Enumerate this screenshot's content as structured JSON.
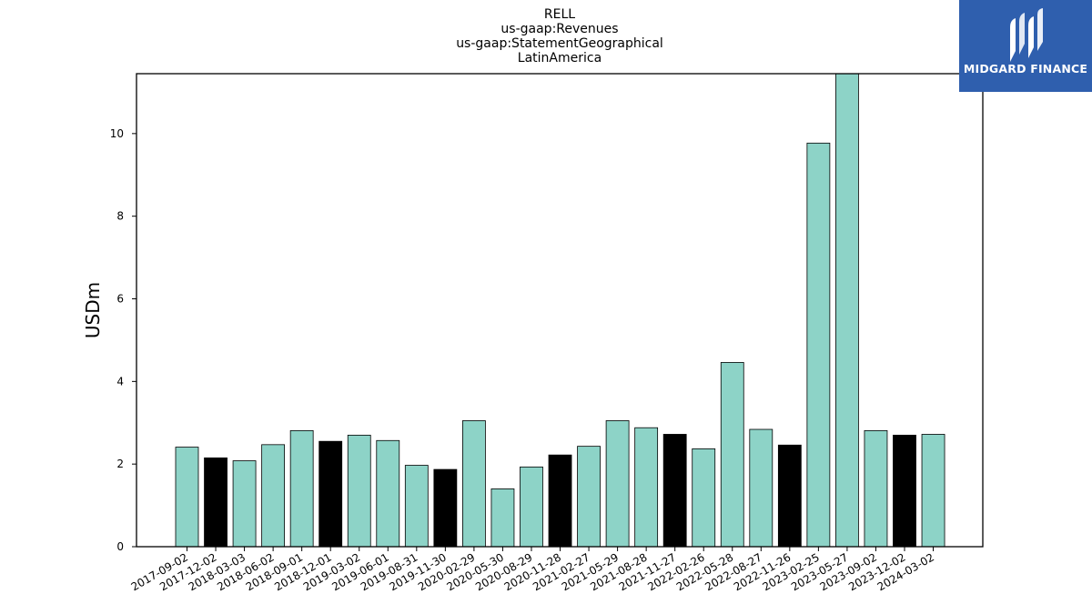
{
  "chart_data": {
    "type": "bar",
    "title_lines": [
      "RELL",
      "us-gaap:Revenues",
      "us-gaap:StatementGeographical",
      "LatinAmerica"
    ],
    "xlabel": "",
    "ylabel": "USDm",
    "ylim": [
      0,
      11.45
    ],
    "yticks": [
      0,
      2,
      4,
      6,
      8,
      10
    ],
    "grid": false,
    "categories": [
      "2017-09-02",
      "2017-12-02",
      "2018-03-03",
      "2018-06-02",
      "2018-09-01",
      "2018-12-01",
      "2019-03-02",
      "2019-06-01",
      "2019-08-31",
      "2019-11-30",
      "2020-02-29",
      "2020-05-30",
      "2020-08-29",
      "2020-11-28",
      "2021-02-27",
      "2021-05-29",
      "2021-08-28",
      "2021-11-27",
      "2022-02-26",
      "2022-05-28",
      "2022-08-27",
      "2022-11-26",
      "2023-02-25",
      "2023-05-27",
      "2023-09-02",
      "2023-12-02",
      "2024-03-02"
    ],
    "values": [
      2.41,
      2.15,
      2.08,
      2.47,
      2.81,
      2.55,
      2.7,
      2.57,
      1.97,
      1.87,
      3.05,
      1.4,
      1.93,
      2.22,
      2.43,
      3.05,
      2.88,
      2.72,
      2.37,
      4.46,
      2.84,
      2.46,
      9.77,
      11.45,
      2.81,
      2.7,
      2.72
    ],
    "bar_colors": [
      "#8dd3c7",
      "#000000",
      "#8dd3c7",
      "#8dd3c7",
      "#8dd3c7",
      "#000000",
      "#8dd3c7",
      "#8dd3c7",
      "#8dd3c7",
      "#000000",
      "#8dd3c7",
      "#8dd3c7",
      "#8dd3c7",
      "#000000",
      "#8dd3c7",
      "#8dd3c7",
      "#8dd3c7",
      "#000000",
      "#8dd3c7",
      "#8dd3c7",
      "#8dd3c7",
      "#000000",
      "#8dd3c7",
      "#8dd3c7",
      "#8dd3c7",
      "#000000",
      "#8dd3c7"
    ]
  },
  "logo": {
    "text": "MIDGARD FINANCE",
    "background": "#2f5fae",
    "icon": "midgard-finance-logo-icon"
  }
}
